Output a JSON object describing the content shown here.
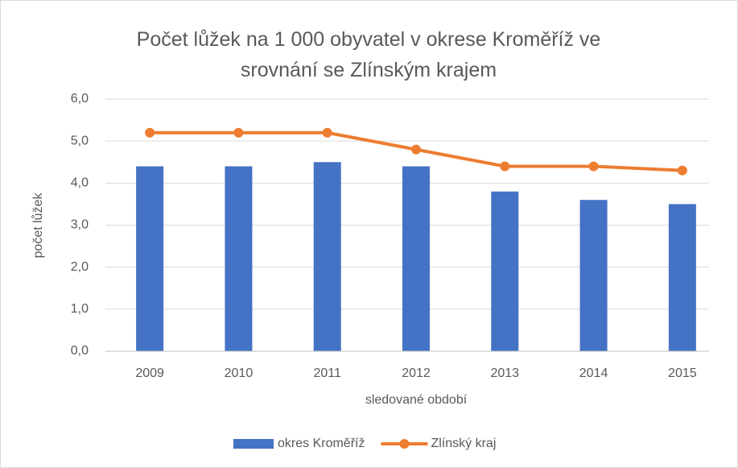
{
  "chart_data": {
    "type": "bar",
    "title": "Počet lůžek na 1 000 obyvatel v okrese Kroměříž ve srovnání se Zlínským krajem",
    "x_label": "sledované období",
    "y_label": "počet lůžek",
    "categories": [
      "2009",
      "2010",
      "2011",
      "2012",
      "2013",
      "2014",
      "2015"
    ],
    "series": [
      {
        "name": "okres Kroměříž",
        "color": "#4472c4",
        "type": "bar",
        "values": [
          4.4,
          4.4,
          4.5,
          4.4,
          3.8,
          3.6,
          3.5
        ]
      },
      {
        "name": "Zlínský kraj",
        "color": "#ed7d31",
        "type": "line",
        "values": [
          5.2,
          5.2,
          5.2,
          4.8,
          4.4,
          4.4,
          4.3
        ]
      }
    ],
    "ylim": [
      0,
      6
    ],
    "yticks": [
      {
        "value": 0,
        "label": "0,0"
      },
      {
        "value": 1,
        "label": "1,0"
      },
      {
        "value": 2,
        "label": "2,0"
      },
      {
        "value": 3,
        "label": "3,0"
      },
      {
        "value": 4,
        "label": "4,0"
      },
      {
        "value": 5,
        "label": "5,0"
      },
      {
        "value": 6,
        "label": "6,0"
      }
    ],
    "grid": true,
    "legend": "bottom"
  }
}
